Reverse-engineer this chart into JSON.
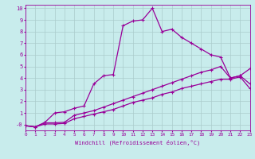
{
  "xlabel": "Windchill (Refroidissement éolien,°C)",
  "bg_color": "#c8ecec",
  "grid_color": "#b0d8d8",
  "line_color": "#990099",
  "xlim": [
    0,
    23
  ],
  "ylim": [
    -0.5,
    10.3
  ],
  "xticks": [
    0,
    1,
    2,
    3,
    4,
    5,
    6,
    7,
    8,
    9,
    10,
    11,
    12,
    13,
    14,
    15,
    16,
    17,
    18,
    19,
    20,
    21,
    22,
    23
  ],
  "yticks": [
    0,
    1,
    2,
    3,
    4,
    5,
    6,
    7,
    8,
    9,
    10
  ],
  "ytick_labels": [
    "-0",
    "1",
    "2",
    "3",
    "4",
    "5",
    "6",
    "7",
    "8",
    "9",
    "10"
  ],
  "line1_x": [
    0,
    1,
    2,
    3,
    4,
    5,
    6,
    7,
    8,
    9,
    10,
    11,
    12,
    13,
    14,
    15,
    16,
    17,
    18,
    19,
    20,
    21,
    22,
    23
  ],
  "line1_y": [
    -0.1,
    -0.2,
    0.2,
    1.0,
    1.1,
    1.4,
    1.6,
    3.5,
    4.2,
    4.3,
    8.5,
    8.9,
    9.0,
    10.0,
    8.0,
    8.2,
    7.5,
    7.0,
    6.5,
    6.0,
    5.8,
    4.0,
    4.2,
    3.5
  ],
  "line2_x": [
    0,
    1,
    2,
    3,
    4,
    5,
    6,
    7,
    8,
    9,
    10,
    11,
    12,
    13,
    14,
    15,
    16,
    17,
    18,
    19,
    20,
    21,
    22,
    23
  ],
  "line2_y": [
    -0.1,
    -0.2,
    0.15,
    0.15,
    0.2,
    0.8,
    1.0,
    1.2,
    1.5,
    1.8,
    2.1,
    2.4,
    2.7,
    3.0,
    3.3,
    3.6,
    3.9,
    4.2,
    4.5,
    4.7,
    5.0,
    4.0,
    4.2,
    4.8
  ],
  "line3_x": [
    0,
    1,
    2,
    3,
    4,
    5,
    6,
    7,
    8,
    9,
    10,
    11,
    12,
    13,
    14,
    15,
    16,
    17,
    18,
    19,
    20,
    21,
    22,
    23
  ],
  "line3_y": [
    -0.1,
    -0.2,
    0.05,
    0.05,
    0.1,
    0.5,
    0.7,
    0.9,
    1.1,
    1.3,
    1.6,
    1.9,
    2.1,
    2.3,
    2.6,
    2.8,
    3.1,
    3.3,
    3.5,
    3.7,
    3.9,
    3.9,
    4.1,
    3.1
  ]
}
